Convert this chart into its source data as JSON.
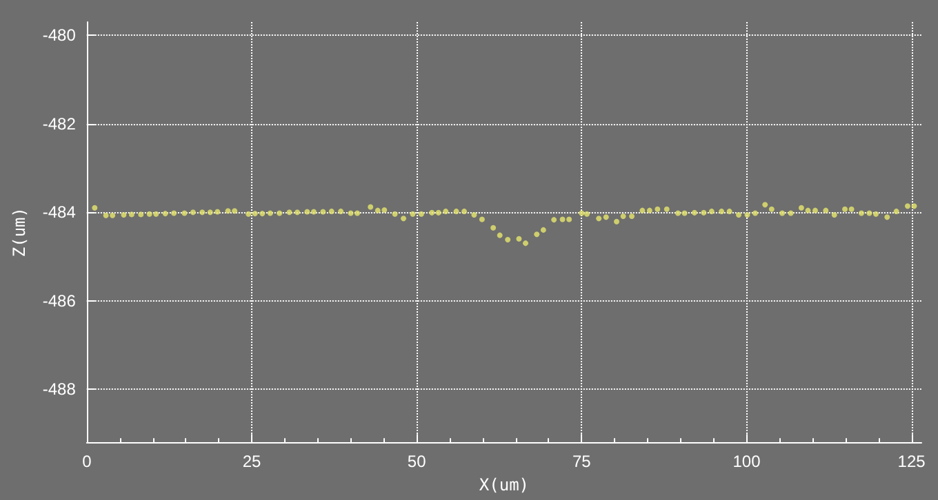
{
  "chart_data": {
    "type": "scatter",
    "xlabel": "X(um)",
    "ylabel": "Z(um)",
    "xlim": [
      0,
      126.5
    ],
    "xticks": [
      0,
      25,
      50,
      75,
      100,
      125
    ],
    "ylim": [
      -489.2,
      -479.7
    ],
    "yticks": [
      -488,
      -486,
      -484,
      -482,
      -480
    ],
    "grid": true,
    "marker": "circle",
    "series": [
      {
        "color": "#e6e66e",
        "x": [
          1.2,
          2.9,
          3.9,
          5.6,
          6.8,
          8.2,
          9.5,
          10.5,
          11.9,
          13.2,
          14.8,
          16.1,
          17.5,
          18.7,
          19.8,
          21.4,
          22.4,
          24.5,
          25.5,
          26.6,
          27.8,
          29.2,
          30.7,
          31.9,
          33.4,
          34.4,
          35.8,
          37.1,
          38.5,
          40.0,
          41.0,
          43.0,
          44.1,
          45.1,
          46.7,
          48.0,
          49.4,
          50.7,
          52.3,
          53.3,
          54.4,
          56.0,
          57.2,
          58.7,
          59.9,
          61.6,
          62.6,
          63.8,
          65.5,
          66.5,
          68.2,
          69.2,
          70.8,
          72.1,
          73.1,
          75.0,
          75.8,
          77.6,
          78.7,
          80.3,
          81.3,
          82.6,
          84.2,
          85.3,
          86.5,
          87.9,
          89.6,
          90.6,
          92.1,
          93.5,
          94.7,
          96.2,
          97.4,
          98.8,
          100.1,
          101.3,
          102.8,
          103.8,
          105.4,
          106.7,
          108.3,
          109.3,
          110.4,
          112.0,
          113.3,
          114.9,
          115.9,
          117.4,
          118.6,
          119.6,
          121.3,
          122.7,
          124.4,
          125.4
        ],
        "values": [
          -483.9,
          -484.07,
          -484.07,
          -484.06,
          -484.05,
          -484.05,
          -484.04,
          -484.04,
          -484.03,
          -484.02,
          -484.02,
          -484.0,
          -484.0,
          -484.0,
          -483.99,
          -483.97,
          -483.97,
          -484.04,
          -484.03,
          -484.03,
          -484.02,
          -484.02,
          -484.0,
          -484.0,
          -483.99,
          -483.99,
          -483.99,
          -483.98,
          -483.98,
          -484.02,
          -484.02,
          -483.88,
          -483.96,
          -483.95,
          -484.04,
          -484.14,
          -484.04,
          -484.04,
          -484.01,
          -484.01,
          -483.98,
          -483.98,
          -483.98,
          -484.06,
          -484.16,
          -484.35,
          -484.52,
          -484.62,
          -484.6,
          -484.7,
          -484.5,
          -484.4,
          -484.17,
          -484.16,
          -484.16,
          -484.02,
          -484.04,
          -484.14,
          -484.11,
          -484.21,
          -484.09,
          -484.09,
          -483.96,
          -483.96,
          -483.93,
          -483.93,
          -484.02,
          -484.02,
          -484.01,
          -484.01,
          -483.98,
          -483.98,
          -483.98,
          -484.06,
          -484.06,
          -484.02,
          -483.83,
          -483.93,
          -484.02,
          -484.02,
          -483.9,
          -483.96,
          -483.96,
          -483.96,
          -484.06,
          -483.93,
          -483.93,
          -484.02,
          -484.02,
          -484.04,
          -484.11,
          -483.98,
          -483.86,
          -483.86
        ]
      }
    ]
  }
}
